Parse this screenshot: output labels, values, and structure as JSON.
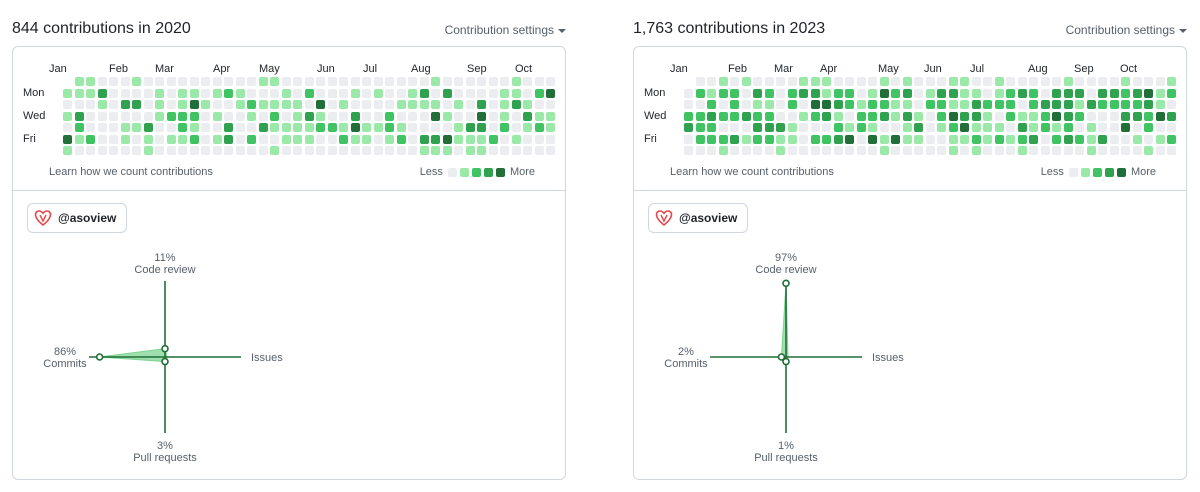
{
  "panels": [
    {
      "heading": "844 contributions in 2020",
      "settings_label": "Contribution settings",
      "months": [
        "Jan",
        "Feb",
        "Mar",
        "Apr",
        "May",
        "Jun",
        "Jul",
        "Aug",
        "Sep",
        "Oct"
      ],
      "weekdays": [
        "Mon",
        "Wed",
        "Fri"
      ],
      "learn_label": "Learn how we count contributions",
      "legend_less": "Less",
      "legend_more": "More",
      "org_name": "@asoview",
      "overview": {
        "code_review": {
          "pct": "11%",
          "label": "Code review",
          "value": 11
        },
        "issues": {
          "label": "Issues"
        },
        "commits": {
          "pct": "86%",
          "label": "Commits",
          "value": 86
        },
        "pull_requests": {
          "pct": "3%",
          "label": "Pull requests",
          "value": 3
        }
      }
    },
    {
      "heading": "1,763 contributions in 2023",
      "settings_label": "Contribution settings",
      "months": [
        "Jan",
        "Feb",
        "Mar",
        "Apr",
        "May",
        "Jun",
        "Jul",
        "Aug",
        "Sep",
        "Oct"
      ],
      "weekdays": [
        "Mon",
        "Wed",
        "Fri"
      ],
      "learn_label": "Learn how we count contributions",
      "legend_less": "Less",
      "legend_more": "More",
      "org_name": "@asoview",
      "overview": {
        "code_review": {
          "pct": "97%",
          "label": "Code review",
          "value": 97
        },
        "issues": {
          "label": "Issues"
        },
        "commits": {
          "pct": "2%",
          "label": "Commits",
          "value": 2
        },
        "pull_requests": {
          "pct": "1%",
          "label": "Pull requests",
          "value": 1
        }
      }
    }
  ],
  "colors": {
    "level0": "#ebedf0",
    "level1": "#9be9a8",
    "level2": "#40c463",
    "level3": "#30a14e",
    "level4": "#216e39",
    "axis": "#216e39",
    "area": "#7ed491",
    "brand": "#e5484d"
  }
}
